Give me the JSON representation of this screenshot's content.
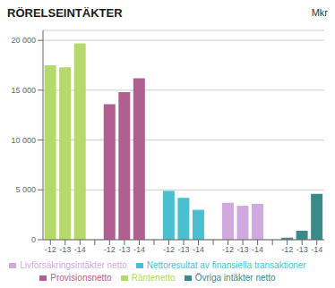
{
  "chart_data": {
    "type": "bar",
    "title": "RÖRELSEINTÄKTER",
    "ylabel": "Mkr",
    "categories": [
      "-12",
      "-13",
      "-14"
    ],
    "series": [
      {
        "name": "Räntenetto",
        "color": "#b5d96b",
        "values": [
          17500,
          17300,
          19700
        ]
      },
      {
        "name": "Provisionsnetto",
        "color": "#b06090",
        "values": [
          13600,
          14800,
          16200
        ]
      },
      {
        "name": "Nettoresultat av finansiella transaktioner",
        "color": "#4bbfcf",
        "values": [
          4900,
          4200,
          3000
        ]
      },
      {
        "name": "Livförsäkringsintäkter netto",
        "color": "#d0aadf",
        "values": [
          3700,
          3400,
          3600
        ]
      },
      {
        "name": "Övriga intäkter netto",
        "color": "#3a8a8a",
        "values": [
          200,
          900,
          4600
        ]
      }
    ],
    "ylim": [
      0,
      21000
    ],
    "yticks": [
      0,
      {
        "value": 5000,
        "label": "5 000"
      },
      {
        "value": 10000,
        "label": "10 000"
      },
      {
        "value": 15000,
        "label": "15 000"
      },
      {
        "value": 20000,
        "label": "20 000"
      }
    ],
    "grid": true,
    "legend": "bottom"
  }
}
